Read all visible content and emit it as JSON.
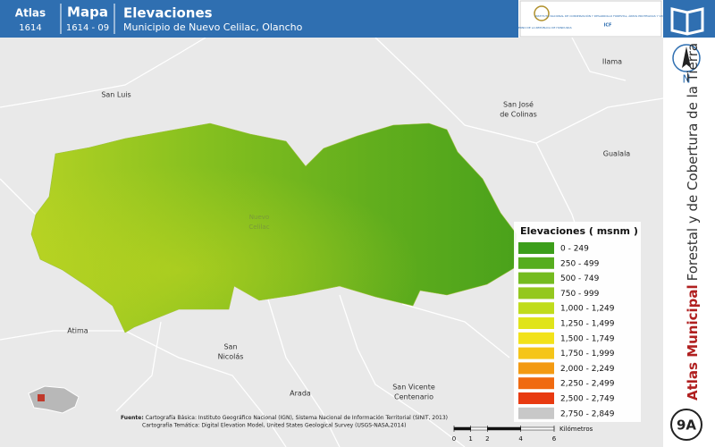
{
  "header": {
    "atlas_label": "Atlas",
    "atlas_number": "1614",
    "map_label": "Mapa",
    "map_number": "1614 - 09",
    "title": "Elevaciones",
    "subtitle": "Municipio de Nuevo Celilac, Olancho"
  },
  "logos": {
    "government": "GOBIERNO DE LA REPÚBLICA DE HONDURAS",
    "institute": "INSTITUTO NACIONAL DE CONSERVACIÓN Y DESARROLLO FORESTAL, ÁREAS PROTEGIDAS Y VIDA SILVESTRE",
    "institute_acronym": "ICF"
  },
  "places": [
    {
      "lines": [
        "San Luis"
      ]
    },
    {
      "lines": [
        "San José",
        "de Colinas"
      ]
    },
    {
      "lines": [
        "Ilama"
      ]
    },
    {
      "lines": [
        "Gualala"
      ]
    },
    {
      "lines": [
        "Nuevo",
        "Celilac"
      ]
    },
    {
      "lines": [
        "Atima"
      ]
    },
    {
      "lines": [
        "San",
        "Nicolás"
      ]
    },
    {
      "lines": [
        "Arada"
      ]
    },
    {
      "lines": [
        "San Vicente",
        "Centenario"
      ]
    }
  ],
  "legend": {
    "title": "Elevaciones ( msnm )",
    "items": [
      {
        "label": "0 - 249",
        "color": "#3c9e1a"
      },
      {
        "label": "250 - 499",
        "color": "#56ad1e"
      },
      {
        "label": "500 - 749",
        "color": "#74bb1f"
      },
      {
        "label": "750 - 999",
        "color": "#94c81e"
      },
      {
        "label": "1,000 - 1,249",
        "color": "#c0dc1c"
      },
      {
        "label": "1,250 - 1,499",
        "color": "#e0e41a"
      },
      {
        "label": "1,500 - 1,749",
        "color": "#f2e21a"
      },
      {
        "label": "1,750 - 1,999",
        "color": "#f5c518"
      },
      {
        "label": "2,000 - 2,249",
        "color": "#f39a12"
      },
      {
        "label": "2,250 - 2,499",
        "color": "#f06a10"
      },
      {
        "label": "2,500 - 2,749",
        "color": "#e83a10"
      },
      {
        "label": "2,750 - 2,849",
        "color": "#c8c8c8"
      }
    ]
  },
  "north_label": "N",
  "side_title": {
    "emphasis": "Atlas Municipal",
    "rest": "Forestal y de Cobertura de la Tierra"
  },
  "sheet": "9A",
  "source": {
    "label": "Fuente:",
    "lines": [
      "Cartografía Básica: Instituto Geográfico Nacional (IGN), Sistema Nacional de Información Territorial (SINIT, 2013)",
      "Cartografía Temática: Digital Elevation Model, United States Geological Survey (USGS-NASA,2014)"
    ]
  },
  "scale_bar": {
    "ticks": [
      0,
      1,
      2,
      4,
      6
    ],
    "unit": "Kilómetros"
  }
}
